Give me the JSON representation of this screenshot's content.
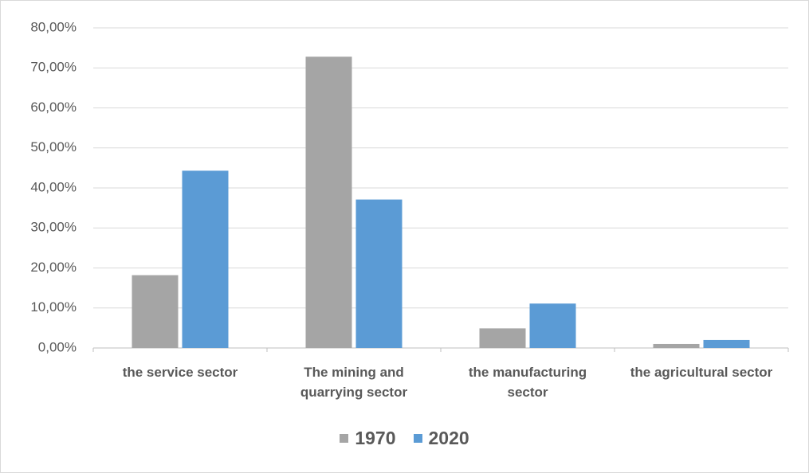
{
  "chart_data": {
    "type": "bar",
    "categories": [
      "the service sector",
      "The mining and quarrying sector",
      "the manufacturing sector",
      "the agricultural sector"
    ],
    "series": [
      {
        "name": "1970",
        "color": "#a5a5a5",
        "values": [
          18.2,
          72.8,
          4.9,
          1.0
        ]
      },
      {
        "name": "2020",
        "color": "#5b9bd5",
        "values": [
          44.3,
          37.1,
          11.1,
          2.0
        ]
      }
    ],
    "ylim": [
      0,
      80
    ],
    "yticks": [
      {
        "value": 0,
        "label": "0,00%"
      },
      {
        "value": 10,
        "label": "10,00%"
      },
      {
        "value": 20,
        "label": "20,00%"
      },
      {
        "value": 30,
        "label": "30,00%"
      },
      {
        "value": 40,
        "label": "40,00%"
      },
      {
        "value": 50,
        "label": "50,00%"
      },
      {
        "value": 60,
        "label": "60,00%"
      },
      {
        "value": 70,
        "label": "70,00%"
      },
      {
        "value": 80,
        "label": "80,00%"
      }
    ],
    "grid": true,
    "legend": "bottom"
  }
}
